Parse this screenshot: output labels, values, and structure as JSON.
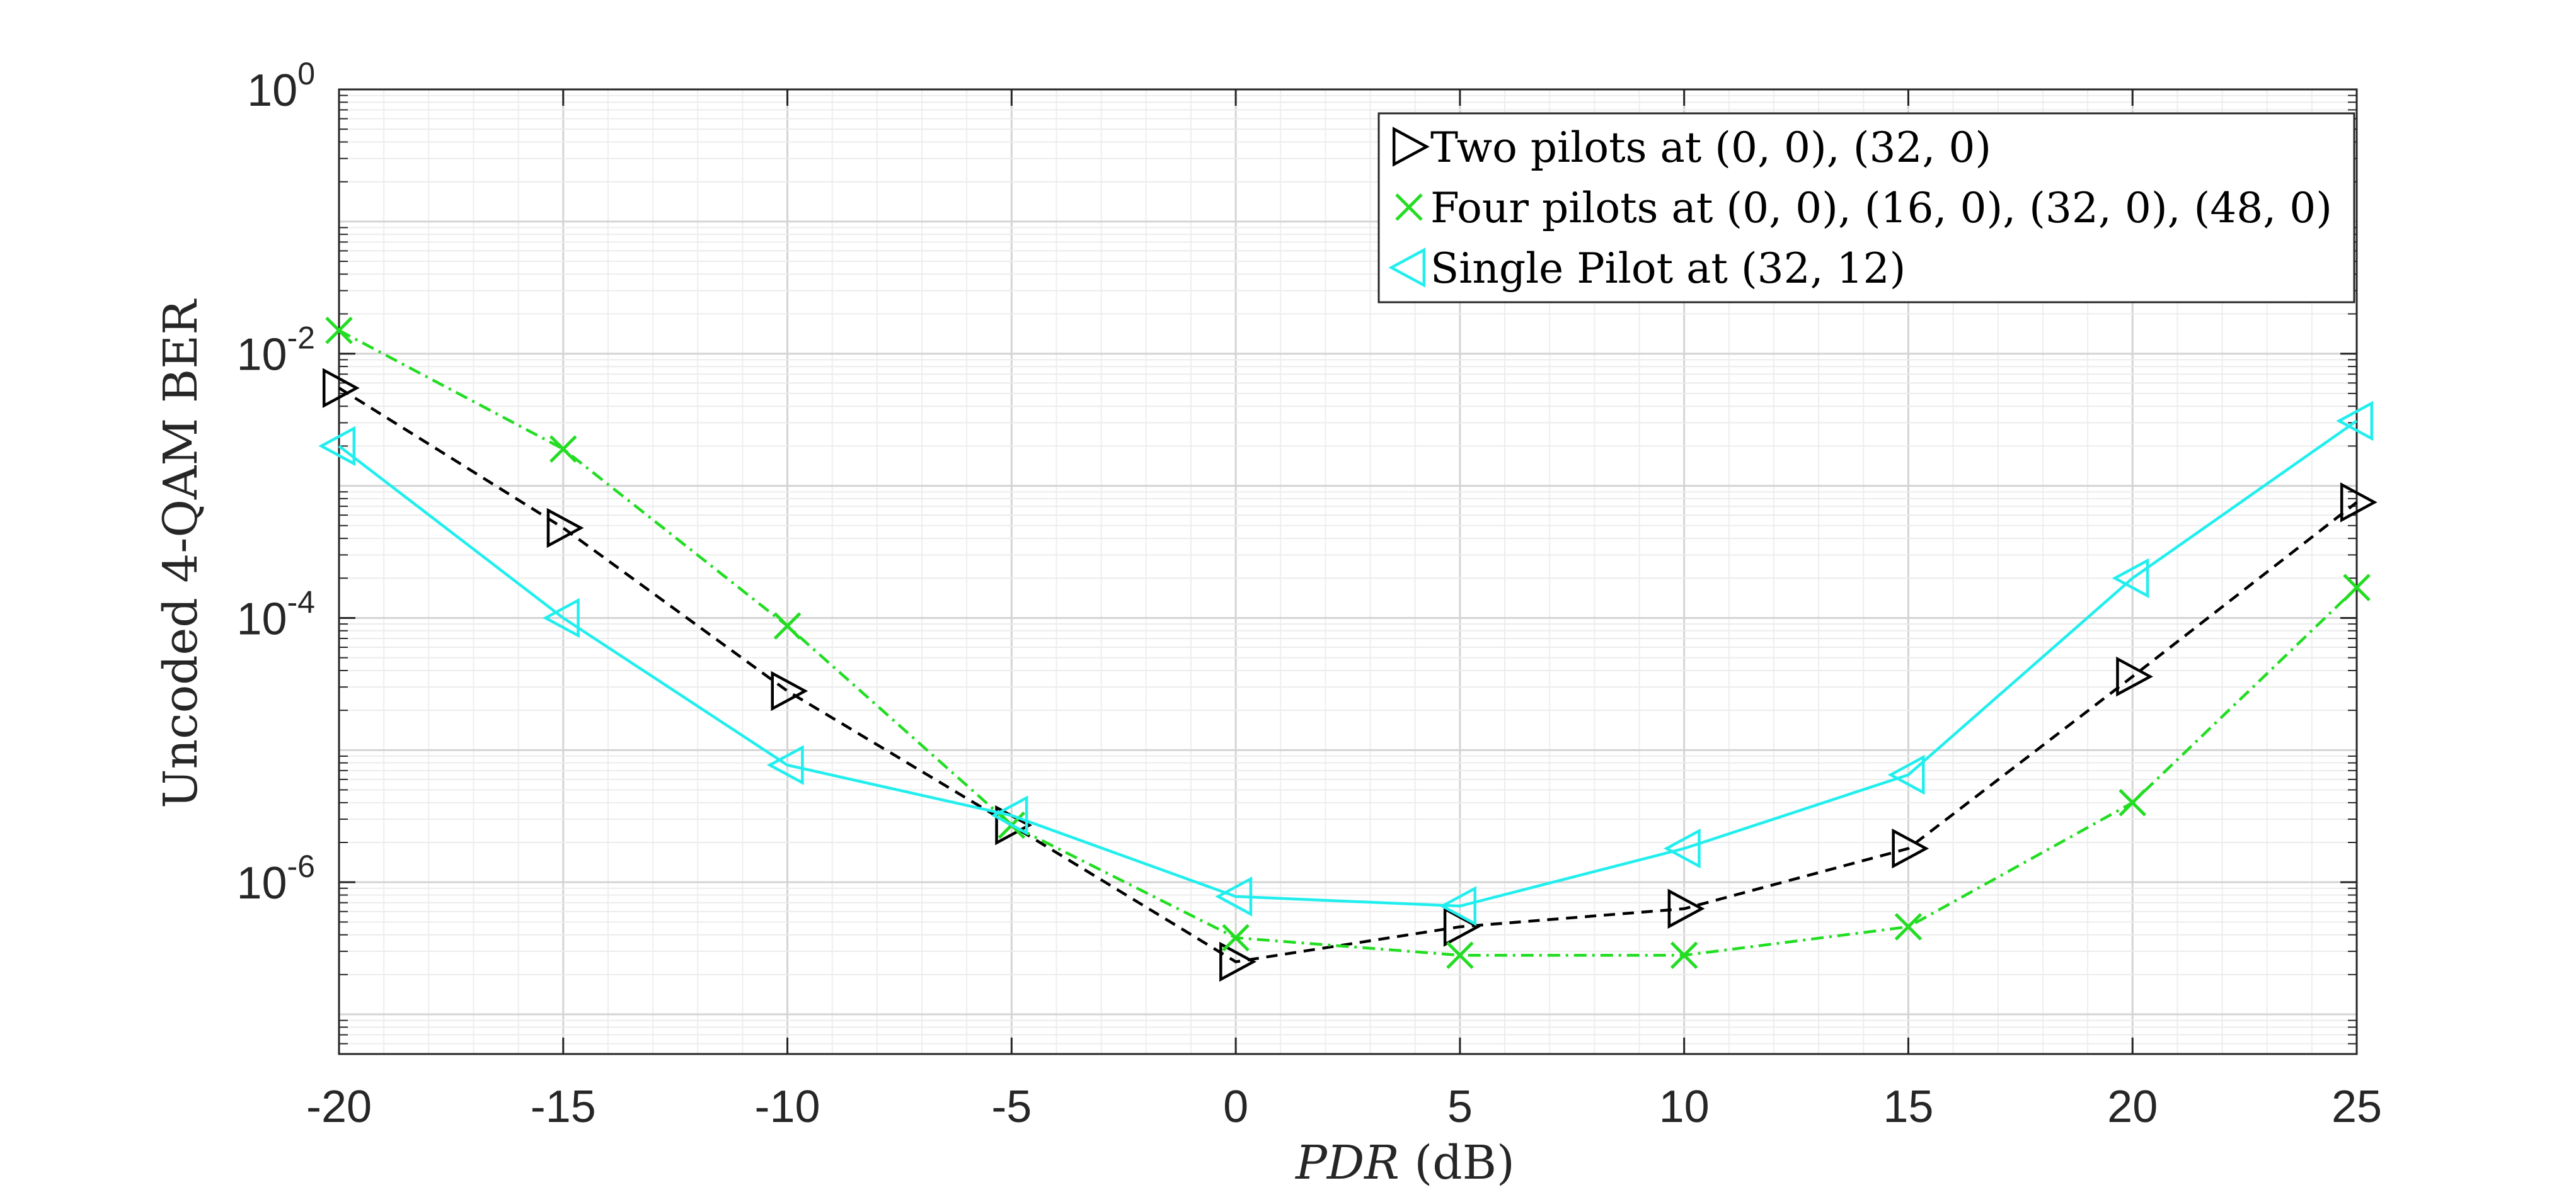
{
  "chart_data": {
    "type": "line",
    "title": "",
    "xlabel": {
      "italic": "PDR",
      "unit": " (dB)"
    },
    "ylabel": "Uncoded 4-QAM BER",
    "x": [
      -20,
      -15,
      -10,
      -5,
      0,
      5,
      10,
      15,
      20,
      25
    ],
    "xlim": [
      -20,
      25
    ],
    "ylim_log10": [
      -7.3,
      0
    ],
    "x_ticks": [
      -20,
      -15,
      -10,
      -5,
      0,
      5,
      10,
      15,
      20,
      25
    ],
    "x_tick_labels": [
      "-20",
      "-15",
      "-10",
      "-5",
      "0",
      "5",
      "10",
      "15",
      "20",
      "25"
    ],
    "y_ticks": [
      {
        "base": "10",
        "exp": "0",
        "log": 0
      },
      {
        "base": "10",
        "exp": "-2",
        "log": -2
      },
      {
        "base": "10",
        "exp": "-4",
        "log": -4
      },
      {
        "base": "10",
        "exp": "-6",
        "log": -6
      }
    ],
    "grid": true,
    "legend_position": "top-right",
    "series": [
      {
        "name": "Two pilots at (0, 0), (32, 0)",
        "color": "#000000",
        "dash": "dashed",
        "marker": "triangle-right",
        "values": [
          0.0055,
          0.00048,
          2.8e-05,
          2.7e-06,
          2.5e-07,
          4.6e-07,
          6.3e-07,
          1.8e-06,
          3.6e-05,
          0.00075
        ]
      },
      {
        "name": "Four pilots at (0, 0), (16, 0), (32, 0), (48, 0)",
        "color": "#22dd22",
        "dash": "dashdot",
        "marker": "x",
        "values": [
          0.015,
          0.0019,
          8.7e-05,
          2.7e-06,
          3.8e-07,
          2.8e-07,
          2.8e-07,
          4.6e-07,
          4e-06,
          0.00017
        ]
      },
      {
        "name": "Single Pilot at (32, 12)",
        "color": "#22eeee",
        "dash": "solid",
        "marker": "triangle-left",
        "values": [
          0.002,
          0.0001,
          7.7e-06,
          3.2e-06,
          7.8e-07,
          6.6e-07,
          1.8e-06,
          6.5e-06,
          0.0002,
          0.0031
        ]
      }
    ]
  }
}
